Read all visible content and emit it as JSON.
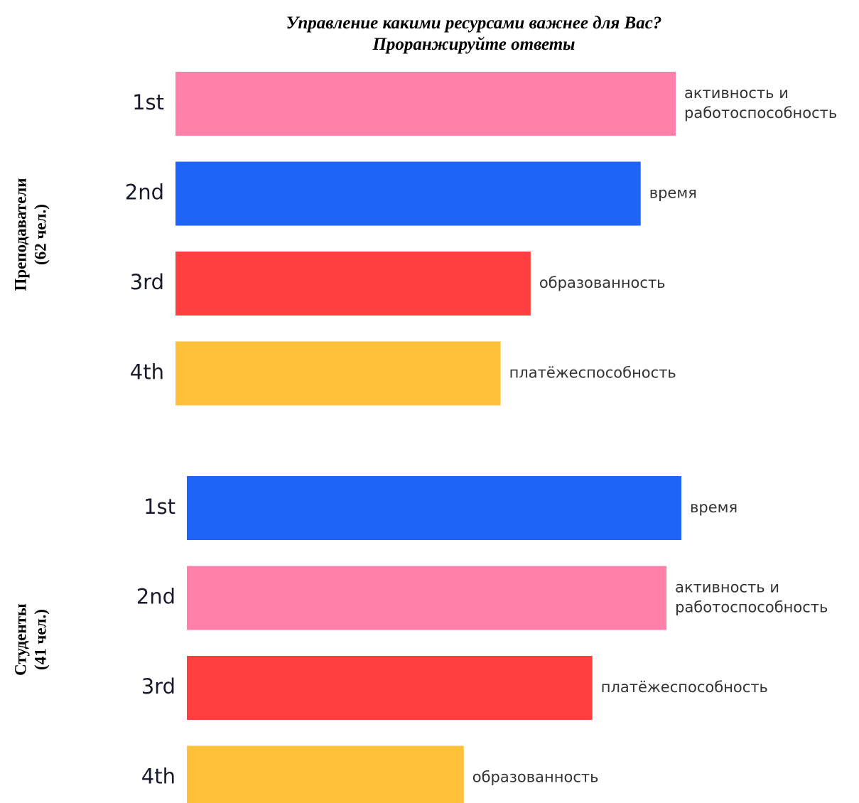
{
  "title": [
    "Управление какими ресурсами важнее для Вас?",
    "Проранжируйте ответы"
  ],
  "chart_data": [
    {
      "type": "bar",
      "group": [
        "Преподаватели",
        "(62 чел.)"
      ],
      "categories": [
        "1st",
        "2nd",
        "3rd",
        "4th"
      ],
      "labels": [
        [
          "активность и",
          "работоспособность"
        ],
        [
          "время"
        ],
        [
          "образованность"
        ],
        [
          "платёжеспособность"
        ]
      ],
      "values": [
        100,
        93,
        71,
        65
      ],
      "colors": [
        "#ff80a8",
        "#1e64f8",
        "#ff3f3f",
        "#ffc13a"
      ]
    },
    {
      "type": "bar",
      "group": [
        "Студенты",
        "(41 чел.)"
      ],
      "categories": [
        "1st",
        "2nd",
        "3rd",
        "4th"
      ],
      "labels": [
        [
          "время"
        ],
        [
          "активность и",
          "работоспособность"
        ],
        [
          "платёжеспособность"
        ],
        [
          "образованность"
        ]
      ],
      "values": [
        100,
        97,
        82,
        56
      ],
      "colors": [
        "#1e64f8",
        "#ff80a8",
        "#ff3f3f",
        "#ffc13a"
      ]
    }
  ]
}
